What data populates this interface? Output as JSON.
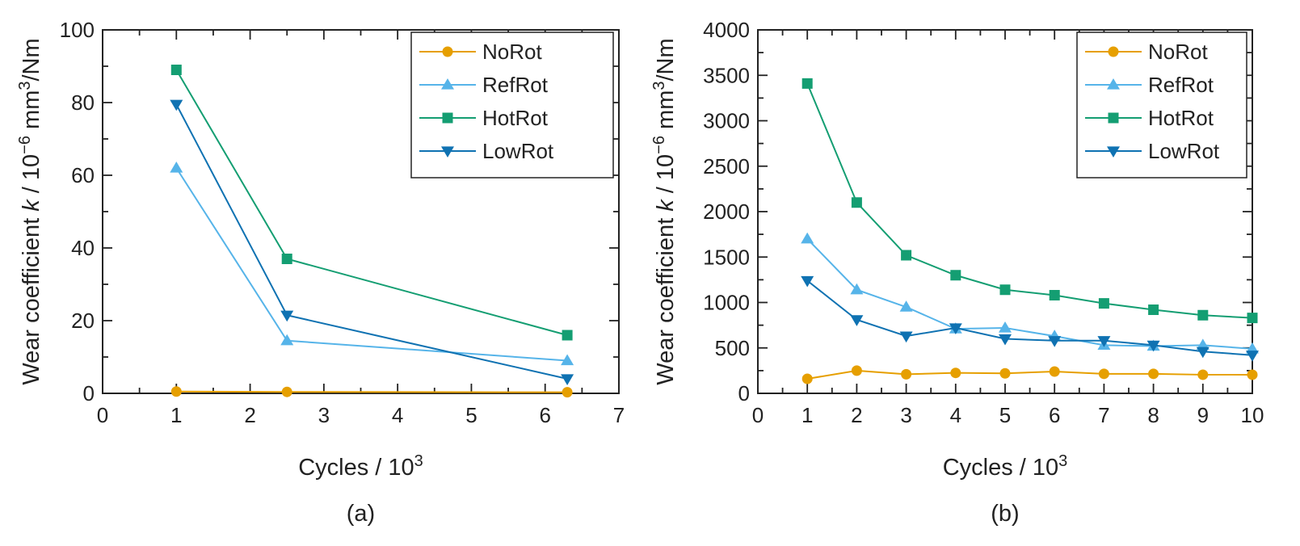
{
  "colors": {
    "NoRot": "#e69f00",
    "RefRot": "#56b4e9",
    "HotRot": "#149e72",
    "LowRot": "#0f72b2",
    "axis": "#222222"
  },
  "chart_data": [
    {
      "type": "line",
      "panel": "(a)",
      "xlabel": "Cycles / 10",
      "xlabel_sup": "3",
      "ylabel": {
        "prefix": "Wear coefficient ",
        "symbol": "k",
        "mid": " / 10",
        "exp1": "−6",
        "unit1": " mm",
        "exp2": "3",
        "unit2": "/Nm"
      },
      "xlim": [
        0,
        7
      ],
      "ylim": [
        0,
        100
      ],
      "xticks": [
        0,
        1,
        2,
        3,
        4,
        5,
        6,
        7
      ],
      "yticks": [
        0,
        20,
        40,
        60,
        80,
        100
      ],
      "xminor": 0.5,
      "yminor": 10,
      "x": [
        1,
        2.5,
        6.3
      ],
      "legend_position": "top-right",
      "series": [
        {
          "name": "NoRot",
          "marker": "circle",
          "values": [
            0.5,
            0.4,
            0.3
          ]
        },
        {
          "name": "RefRot",
          "marker": "triangle-up",
          "values": [
            62,
            14.5,
            9
          ]
        },
        {
          "name": "HotRot",
          "marker": "square",
          "values": [
            89,
            37,
            16
          ]
        },
        {
          "name": "LowRot",
          "marker": "triangle-down",
          "values": [
            79.5,
            21.5,
            4
          ]
        }
      ]
    },
    {
      "type": "line",
      "panel": "(b)",
      "xlabel": "Cycles / 10",
      "xlabel_sup": "3",
      "ylabel": {
        "prefix": "Wear coefficient ",
        "symbol": "k",
        "mid": " / 10",
        "exp1": "−6",
        "unit1": " mm",
        "exp2": "3",
        "unit2": "/Nm"
      },
      "xlim": [
        0,
        10
      ],
      "ylim": [
        0,
        4000
      ],
      "xticks": [
        0,
        1,
        2,
        3,
        4,
        5,
        6,
        7,
        8,
        9,
        10
      ],
      "yticks": [
        0,
        500,
        1000,
        1500,
        2000,
        2500,
        3000,
        3500,
        4000
      ],
      "xminor": 0.5,
      "yminor": 250,
      "x": [
        1,
        2,
        3,
        4,
        5,
        6,
        7,
        8,
        9,
        10
      ],
      "legend_position": "top-right",
      "series": [
        {
          "name": "NoRot",
          "marker": "circle",
          "values": [
            160,
            250,
            210,
            225,
            220,
            240,
            215,
            215,
            205,
            205
          ]
        },
        {
          "name": "RefRot",
          "marker": "triangle-up",
          "values": [
            1700,
            1140,
            950,
            710,
            720,
            630,
            530,
            520,
            530,
            490
          ]
        },
        {
          "name": "HotRot",
          "marker": "square",
          "values": [
            3410,
            2100,
            1520,
            1300,
            1140,
            1080,
            990,
            920,
            860,
            830
          ]
        },
        {
          "name": "LowRot",
          "marker": "triangle-down",
          "values": [
            1240,
            810,
            630,
            720,
            600,
            580,
            580,
            530,
            460,
            420
          ]
        }
      ]
    }
  ]
}
